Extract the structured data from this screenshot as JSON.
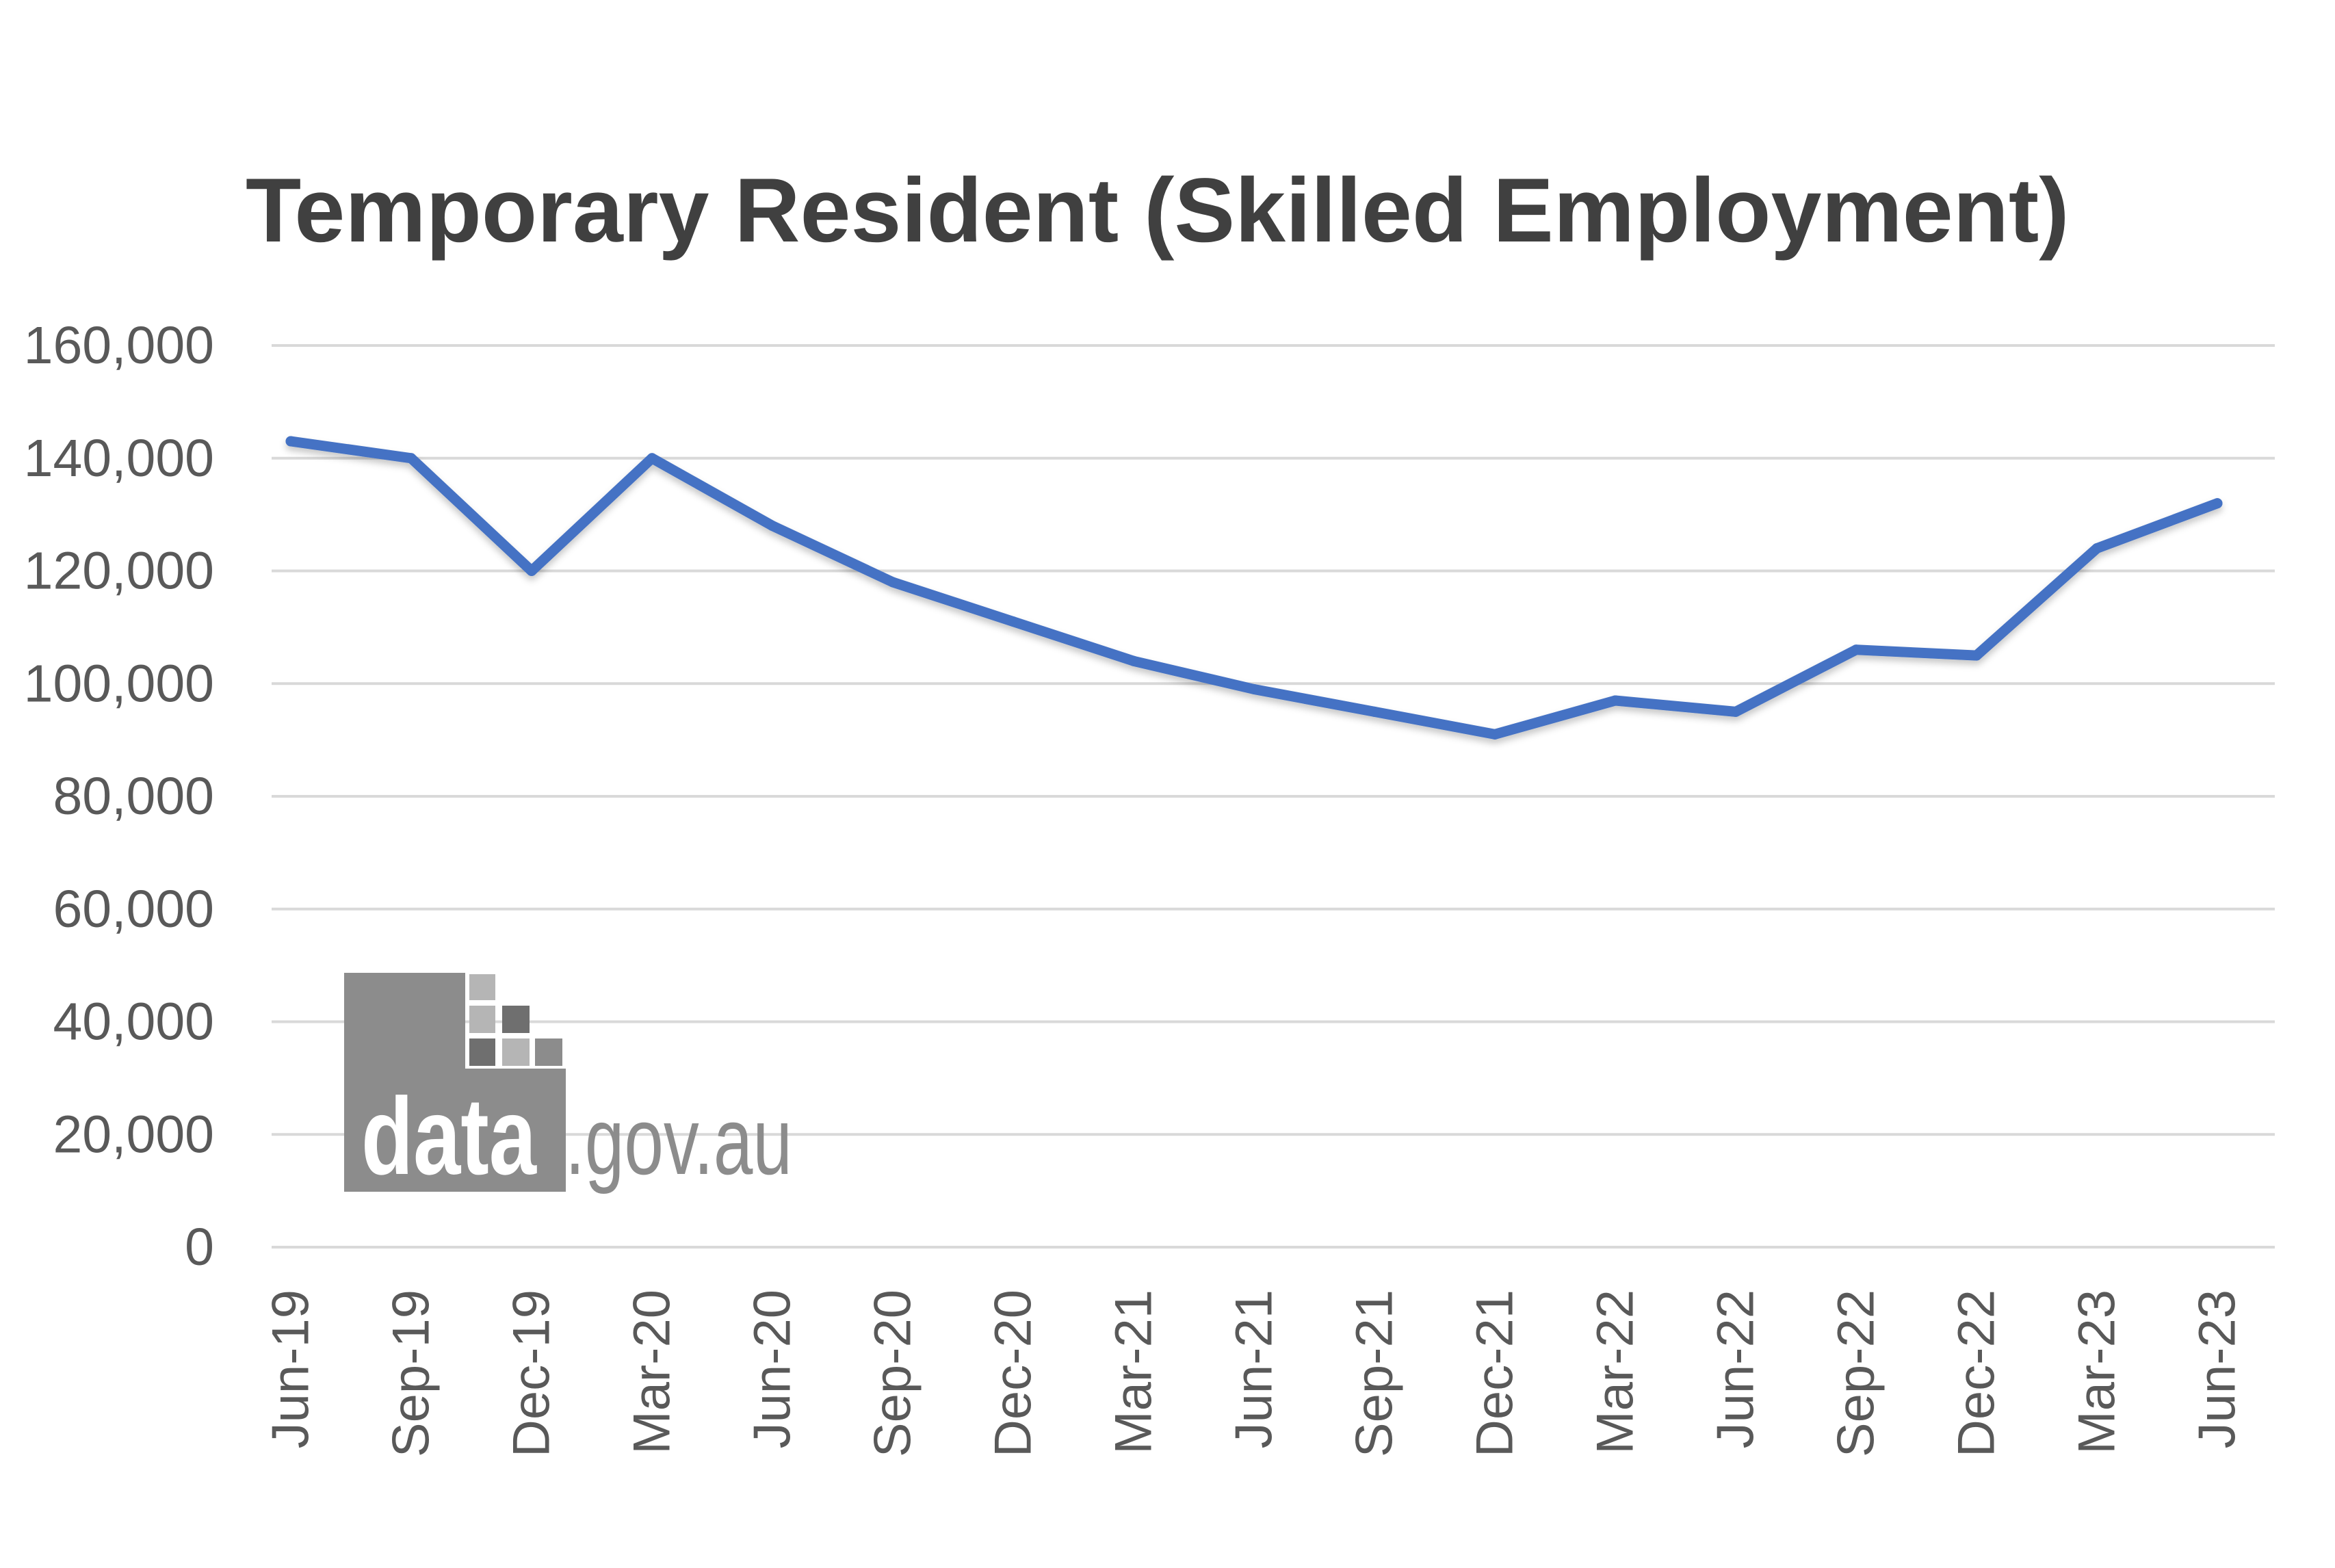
{
  "chart_data": {
    "type": "line",
    "title": "Temporary Resident (Skilled Employment)",
    "categories": [
      "Jun-19",
      "Sep-19",
      "Dec-19",
      "Mar-20",
      "Jun-20",
      "Sep-20",
      "Dec-20",
      "Mar-21",
      "Jun-21",
      "Sep-21",
      "Dec-21",
      "Mar-22",
      "Jun-22",
      "Sep-22",
      "Dec-22",
      "Mar-23",
      "Jun-23"
    ],
    "series": [
      {
        "values": [
          143000,
          140000,
          120000,
          140000,
          128000,
          118000,
          111000,
          104000,
          99000,
          95000,
          91000,
          97000,
          95000,
          106000,
          105000,
          124000,
          132000
        ],
        "color": "#4472C4"
      }
    ],
    "ylim": [
      0,
      160000
    ],
    "yticks": [
      0,
      20000,
      40000,
      60000,
      80000,
      100000,
      120000,
      140000,
      160000
    ],
    "ytick_labels": [
      "0",
      "20,000",
      "40,000",
      "60,000",
      "80,000",
      "100,000",
      "120,000",
      "140,000",
      "160,000"
    ],
    "grid": true
  },
  "logo": {
    "icon": "data-gov-au-logo",
    "primary": "data",
    "secondary": ".gov.au"
  },
  "colors": {
    "background": "#FFFFFF",
    "title": "#404040",
    "tick_label": "#595959",
    "grid": "#D9D9D9",
    "logo_box": "#8C8C8C",
    "logo_pixel_light": "#B5B5B5",
    "logo_pixel_dark": "#6F6F6F",
    "logo_primary_text": "#FFFFFF"
  }
}
